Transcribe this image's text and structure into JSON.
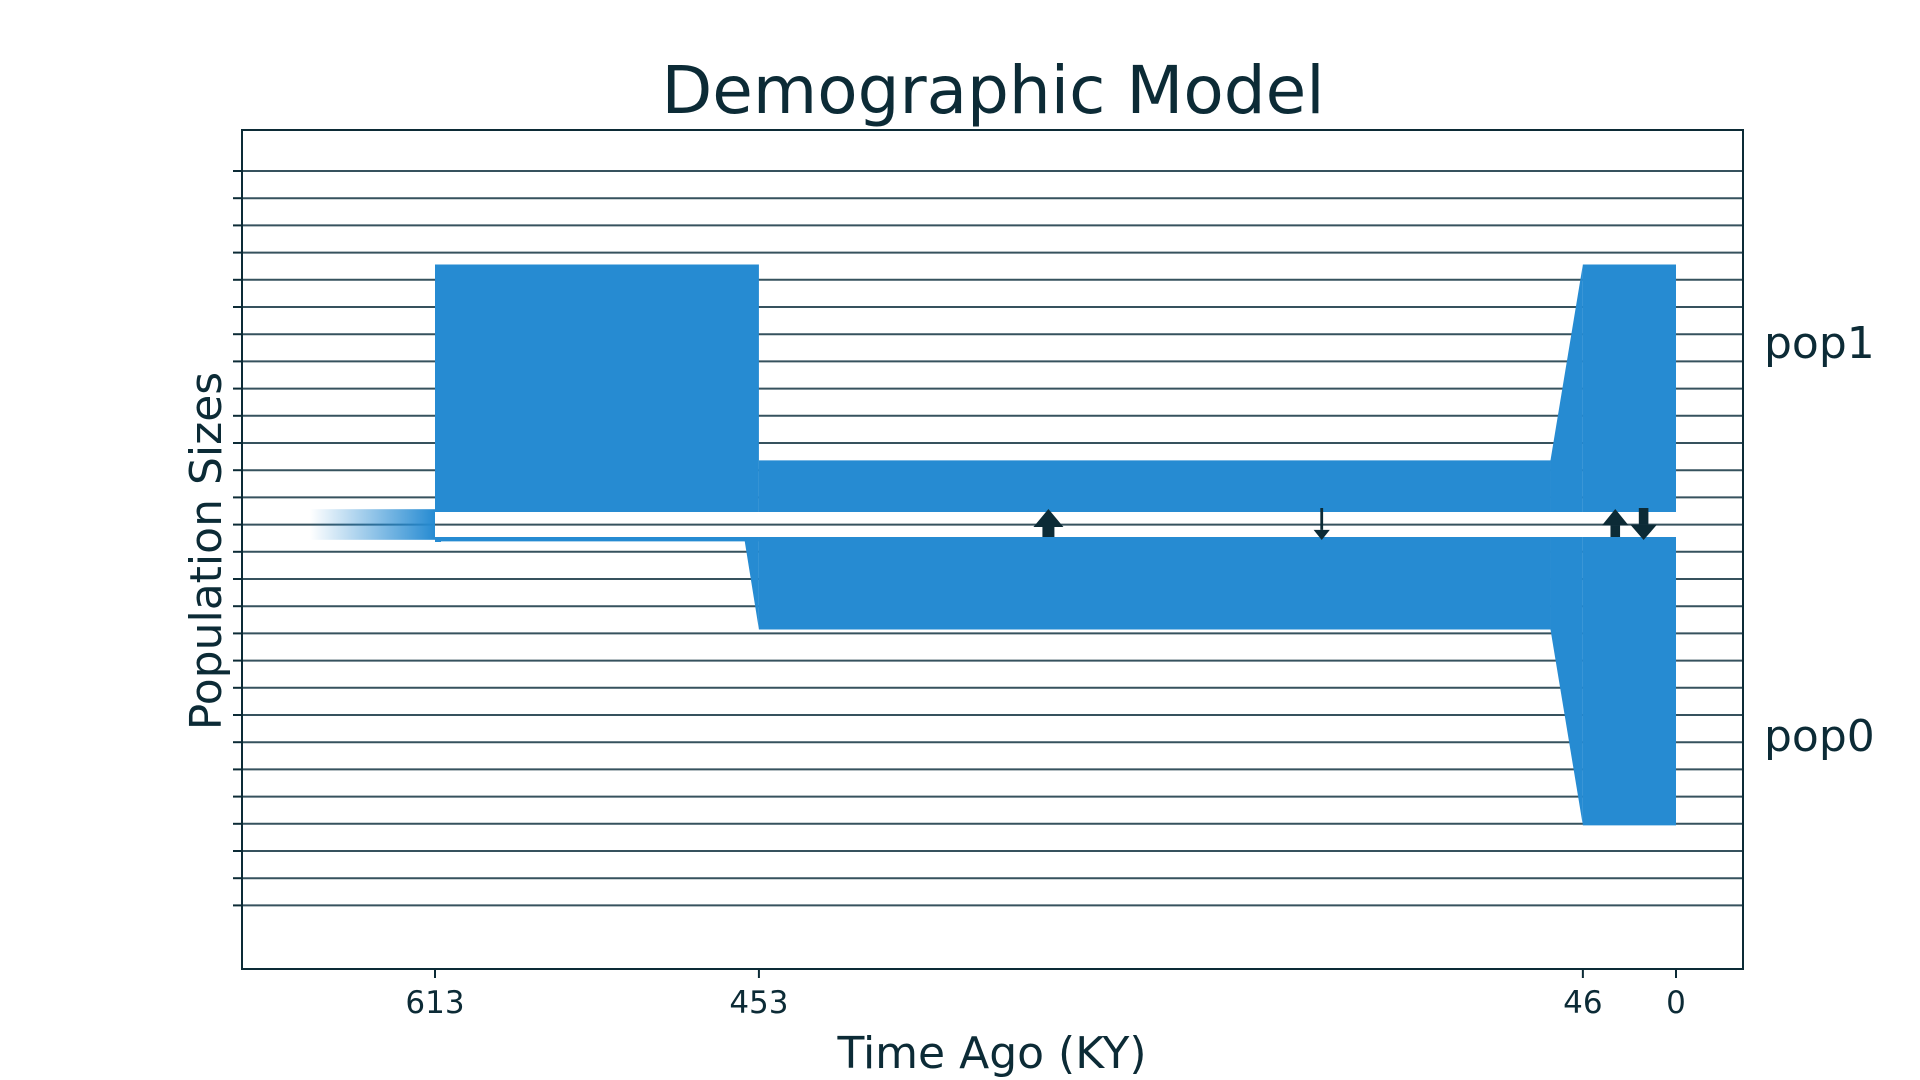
{
  "chart_data": {
    "type": "area",
    "title": "Demographic Model",
    "xlabel": "Time Ago (KY)",
    "ylabel": "Population Sizes",
    "x_ticks": [
      613,
      453,
      46,
      0
    ],
    "xlim": [
      708,
      -33
    ],
    "grid": true,
    "legend": "none",
    "fill_color": "#268bd2",
    "line_color": "#36525e",
    "text_color": "#0c2b36",
    "ancestral_start": 613,
    "ancestral_size": 0.85,
    "populations": [
      {
        "name": "pop0",
        "epochs": [
          {
            "start": 613,
            "end": 453,
            "size_start": 0.16,
            "size_end": 0.16
          },
          {
            "start": 460,
            "end": 453,
            "size_start": 0.16,
            "size_end": 3.4
          },
          {
            "start": 453,
            "end": 62,
            "size_start": 3.4,
            "size_end": 3.4
          },
          {
            "start": 62,
            "end": 46,
            "size_start": 3.4,
            "size_end": 10.6
          },
          {
            "start": 46,
            "end": 0,
            "size_start": 10.6,
            "size_end": 10.6
          }
        ]
      },
      {
        "name": "pop1",
        "epochs": [
          {
            "start": 613,
            "end": 453,
            "size_start": 9.1,
            "size_end": 9.1
          },
          {
            "start": 453,
            "end": 62,
            "size_start": 1.9,
            "size_end": 1.9
          },
          {
            "start": 62,
            "end": 46,
            "size_start": 1.9,
            "size_end": 9.1
          },
          {
            "start": 46,
            "end": 0,
            "size_start": 9.1,
            "size_end": 9.1
          }
        ]
      }
    ],
    "migrations": [
      {
        "time": 310,
        "direction": "up",
        "strength": 3.0
      },
      {
        "time": 175,
        "direction": "down",
        "strength": 0.7
      },
      {
        "time": 30,
        "direction": "up",
        "strength": 2.4
      },
      {
        "time": 16,
        "direction": "down",
        "strength": 2.4
      }
    ]
  }
}
